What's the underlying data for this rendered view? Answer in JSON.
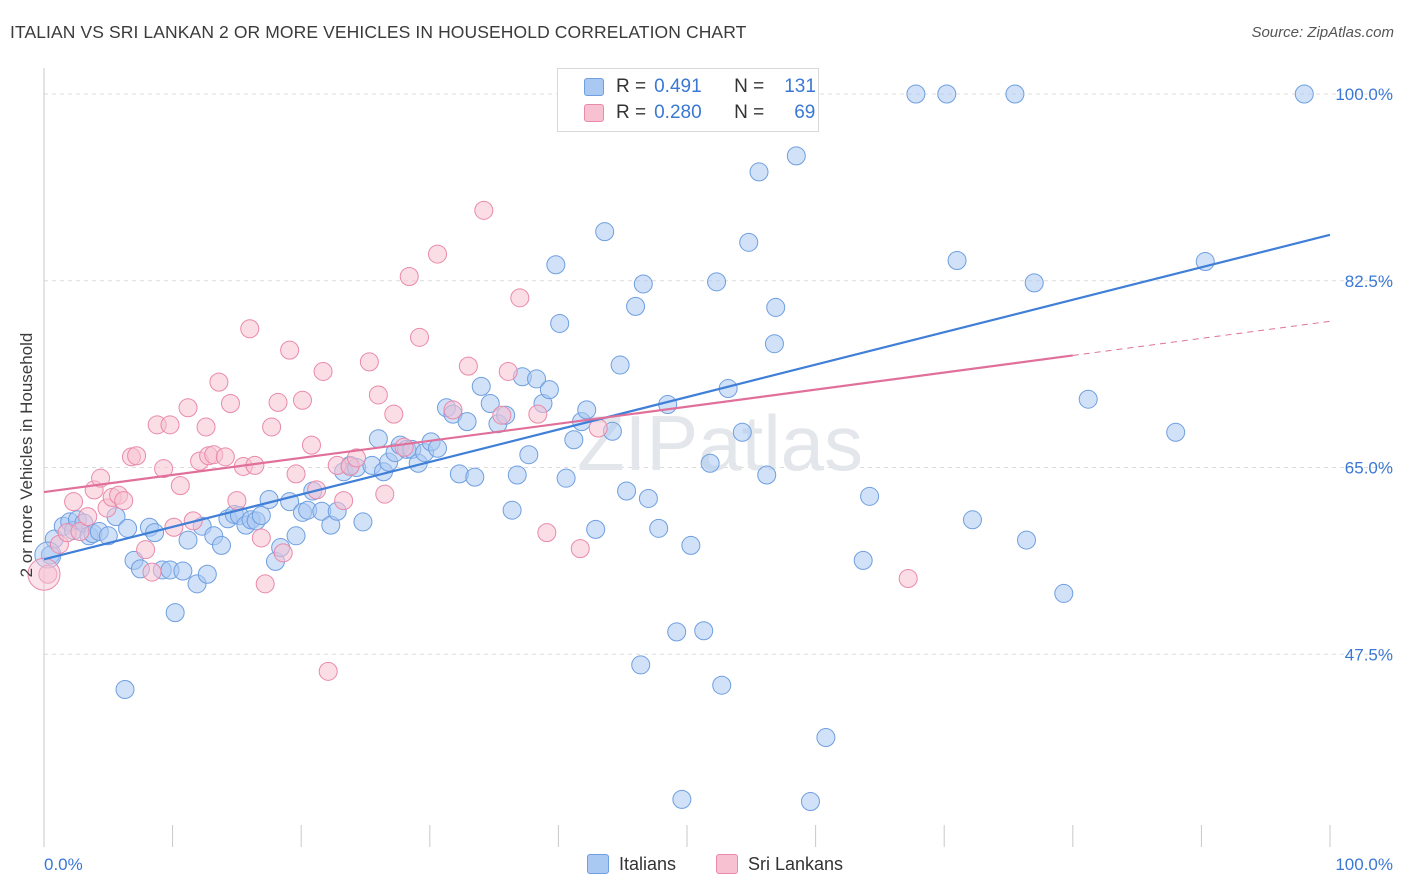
{
  "title": "ITALIAN VS SRI LANKAN 2 OR MORE VEHICLES IN HOUSEHOLD CORRELATION CHART",
  "source": "Source: ZipAtlas.com",
  "watermark": "ZIPatlas",
  "legend": {
    "series": [
      {
        "r_label": "R =",
        "r_value": "0.491",
        "n_label": "N =",
        "n_value": "131",
        "fill": "#a9c8f2",
        "stroke": "#6f9fe0"
      },
      {
        "r_label": "R =",
        "r_value": "0.280",
        "n_label": "N =",
        "n_value": "69",
        "fill": "#f7c1d2",
        "stroke": "#e98aab"
      }
    ]
  },
  "bottom_legend": [
    {
      "label": "Italians",
      "fill": "#a9c8f2",
      "stroke": "#6f9fe0"
    },
    {
      "label": "Sri Lankans",
      "fill": "#f7c1d2",
      "stroke": "#e98aab"
    }
  ],
  "chart_data": {
    "type": "scatter",
    "title": "ITALIAN VS SRI LANKAN 2 OR MORE VEHICLES IN HOUSEHOLD CORRELATION CHART",
    "xlabel": "",
    "ylabel": "2 or more Vehicles in Household",
    "xlim": [
      0,
      100
    ],
    "ylim": [
      31.5,
      101.5
    ],
    "x_tick_labels": [
      "0.0%",
      "100.0%"
    ],
    "y_ticks": [
      47.5,
      65.0,
      82.5,
      100.0
    ],
    "y_tick_labels": [
      "47.5%",
      "65.0%",
      "82.5%",
      "100.0%"
    ],
    "grid": true,
    "legend_position": "top-center",
    "colors": {
      "italians": "#3f7fd8",
      "sri_lankans": "#e0709a"
    },
    "series": [
      {
        "name": "Italians",
        "color": "#6f9fe0",
        "fill": "#a9c8f2",
        "trend": {
          "x": [
            0,
            100
          ],
          "y": [
            56.4,
            86.8
          ]
        },
        "points": [
          [
            0.5,
            56.8
          ],
          [
            0.8,
            58.3
          ],
          [
            1.5,
            59.5
          ],
          [
            2.0,
            59.9
          ],
          [
            2.3,
            59.1
          ],
          [
            2.6,
            60.1
          ],
          [
            3.1,
            59.8
          ],
          [
            3.5,
            58.6
          ],
          [
            3.8,
            58.8
          ],
          [
            4.3,
            59.0
          ],
          [
            5.0,
            58.6
          ],
          [
            5.6,
            60.4
          ],
          [
            6.3,
            44.2
          ],
          [
            6.5,
            59.3
          ],
          [
            7.0,
            56.3
          ],
          [
            7.5,
            55.5
          ],
          [
            8.2,
            59.4
          ],
          [
            8.6,
            58.9
          ],
          [
            9.2,
            55.4
          ],
          [
            9.8,
            55.4
          ],
          [
            10.2,
            51.4
          ],
          [
            10.8,
            55.3
          ],
          [
            11.2,
            58.2
          ],
          [
            11.9,
            54.1
          ],
          [
            12.3,
            59.5
          ],
          [
            12.7,
            55.0
          ],
          [
            13.2,
            58.6
          ],
          [
            13.8,
            57.7
          ],
          [
            14.3,
            60.2
          ],
          [
            14.8,
            60.6
          ],
          [
            15.2,
            60.5
          ],
          [
            15.7,
            59.6
          ],
          [
            16.1,
            60.1
          ],
          [
            16.5,
            60.0
          ],
          [
            16.9,
            60.5
          ],
          [
            17.5,
            62.0
          ],
          [
            18.0,
            56.2
          ],
          [
            18.4,
            57.5
          ],
          [
            19.1,
            61.8
          ],
          [
            19.6,
            58.6
          ],
          [
            20.1,
            60.8
          ],
          [
            20.5,
            61.0
          ],
          [
            20.9,
            62.8
          ],
          [
            21.6,
            60.9
          ],
          [
            22.3,
            59.6
          ],
          [
            22.8,
            60.9
          ],
          [
            23.3,
            64.6
          ],
          [
            23.8,
            65.2
          ],
          [
            24.3,
            65.0
          ],
          [
            24.8,
            59.9
          ],
          [
            25.5,
            65.2
          ],
          [
            26.0,
            67.7
          ],
          [
            26.4,
            64.6
          ],
          [
            26.8,
            65.5
          ],
          [
            27.3,
            66.4
          ],
          [
            27.7,
            67.1
          ],
          [
            28.2,
            66.7
          ],
          [
            28.6,
            66.7
          ],
          [
            29.1,
            65.4
          ],
          [
            29.6,
            66.4
          ],
          [
            30.1,
            67.4
          ],
          [
            30.6,
            66.8
          ],
          [
            31.3,
            70.6
          ],
          [
            31.8,
            70.0
          ],
          [
            32.3,
            64.4
          ],
          [
            32.9,
            69.3
          ],
          [
            33.5,
            64.1
          ],
          [
            34.0,
            72.6
          ],
          [
            34.7,
            71.0
          ],
          [
            35.3,
            69.1
          ],
          [
            35.9,
            69.9
          ],
          [
            36.4,
            61.0
          ],
          [
            36.8,
            64.3
          ],
          [
            37.2,
            73.5
          ],
          [
            37.7,
            66.2
          ],
          [
            38.3,
            73.3
          ],
          [
            38.8,
            71.0
          ],
          [
            39.3,
            72.3
          ],
          [
            39.8,
            84.0
          ],
          [
            40.1,
            78.5
          ],
          [
            40.6,
            64.0
          ],
          [
            41.2,
            67.6
          ],
          [
            41.8,
            69.3
          ],
          [
            42.2,
            70.4
          ],
          [
            42.9,
            59.2
          ],
          [
            43.6,
            87.1
          ],
          [
            44.2,
            68.4
          ],
          [
            44.8,
            74.6
          ],
          [
            45.3,
            62.8
          ],
          [
            46.0,
            80.1
          ],
          [
            46.6,
            82.2
          ],
          [
            46.4,
            46.5
          ],
          [
            47.0,
            62.1
          ],
          [
            47.8,
            59.3
          ],
          [
            48.5,
            70.9
          ],
          [
            49.2,
            49.6
          ],
          [
            49.6,
            33.9
          ],
          [
            50.3,
            57.7
          ],
          [
            51.3,
            49.7
          ],
          [
            51.8,
            65.4
          ],
          [
            52.3,
            82.4
          ],
          [
            52.7,
            44.6
          ],
          [
            53.2,
            72.4
          ],
          [
            54.3,
            68.3
          ],
          [
            54.8,
            86.1
          ],
          [
            55.6,
            92.7
          ],
          [
            56.2,
            64.3
          ],
          [
            56.8,
            76.6
          ],
          [
            56.9,
            80.0
          ],
          [
            58.5,
            94.2
          ],
          [
            59.6,
            33.7
          ],
          [
            60.8,
            39.7
          ],
          [
            63.7,
            56.3
          ],
          [
            64.2,
            62.3
          ],
          [
            67.8,
            100.0
          ],
          [
            70.2,
            100.0
          ],
          [
            71.0,
            84.4
          ],
          [
            72.2,
            60.1
          ],
          [
            75.5,
            100.0
          ],
          [
            76.4,
            58.2
          ],
          [
            77.0,
            82.3
          ],
          [
            79.3,
            53.2
          ],
          [
            81.2,
            71.4
          ],
          [
            88.0,
            68.3
          ],
          [
            90.3,
            84.3
          ],
          [
            98.0,
            100.0
          ]
        ]
      },
      {
        "name": "Sri Lankans",
        "color": "#e98aab",
        "fill": "#f7c1d2",
        "trend": {
          "x": [
            0,
            80
          ],
          "y": [
            62.7,
            75.5
          ]
        },
        "trend_dashed": {
          "x": [
            80,
            100
          ],
          "y": [
            75.5,
            78.7
          ]
        },
        "points": [
          [
            0.3,
            55.0
          ],
          [
            1.2,
            57.8
          ],
          [
            1.8,
            58.9
          ],
          [
            2.3,
            61.8
          ],
          [
            2.8,
            59.0
          ],
          [
            3.4,
            60.4
          ],
          [
            3.9,
            62.9
          ],
          [
            4.4,
            64.0
          ],
          [
            4.9,
            61.2
          ],
          [
            5.3,
            62.2
          ],
          [
            5.8,
            62.4
          ],
          [
            6.2,
            61.9
          ],
          [
            6.8,
            66.0
          ],
          [
            7.2,
            66.1
          ],
          [
            7.9,
            57.3
          ],
          [
            8.4,
            55.2
          ],
          [
            8.8,
            69.0
          ],
          [
            9.3,
            64.9
          ],
          [
            9.8,
            69.0
          ],
          [
            10.1,
            59.4
          ],
          [
            10.6,
            63.3
          ],
          [
            11.2,
            70.6
          ],
          [
            11.6,
            60.0
          ],
          [
            12.1,
            65.6
          ],
          [
            12.6,
            68.8
          ],
          [
            12.8,
            66.1
          ],
          [
            13.2,
            66.2
          ],
          [
            13.6,
            73.0
          ],
          [
            14.1,
            66.0
          ],
          [
            14.5,
            71.0
          ],
          [
            15.0,
            61.9
          ],
          [
            15.5,
            65.1
          ],
          [
            16.0,
            78.0
          ],
          [
            16.4,
            65.2
          ],
          [
            16.9,
            58.4
          ],
          [
            17.2,
            54.1
          ],
          [
            17.7,
            68.8
          ],
          [
            18.2,
            71.1
          ],
          [
            18.6,
            57.0
          ],
          [
            19.1,
            76.0
          ],
          [
            19.6,
            64.4
          ],
          [
            20.1,
            71.3
          ],
          [
            20.8,
            67.1
          ],
          [
            21.2,
            62.9
          ],
          [
            21.7,
            74.0
          ],
          [
            22.1,
            45.9
          ],
          [
            22.8,
            65.2
          ],
          [
            23.3,
            61.9
          ],
          [
            23.8,
            65.1
          ],
          [
            24.3,
            65.9
          ],
          [
            25.3,
            74.9
          ],
          [
            26.0,
            71.8
          ],
          [
            26.5,
            62.5
          ],
          [
            27.2,
            70.0
          ],
          [
            28.0,
            66.9
          ],
          [
            28.4,
            82.9
          ],
          [
            29.2,
            77.2
          ],
          [
            30.6,
            85.0
          ],
          [
            31.8,
            70.4
          ],
          [
            33.0,
            74.5
          ],
          [
            34.2,
            89.1
          ],
          [
            35.6,
            69.9
          ],
          [
            36.1,
            74.0
          ],
          [
            37.0,
            80.9
          ],
          [
            38.4,
            70.0
          ],
          [
            39.1,
            58.9
          ],
          [
            41.7,
            57.4
          ],
          [
            43.1,
            68.7
          ],
          [
            67.2,
            54.6
          ]
        ]
      }
    ]
  }
}
